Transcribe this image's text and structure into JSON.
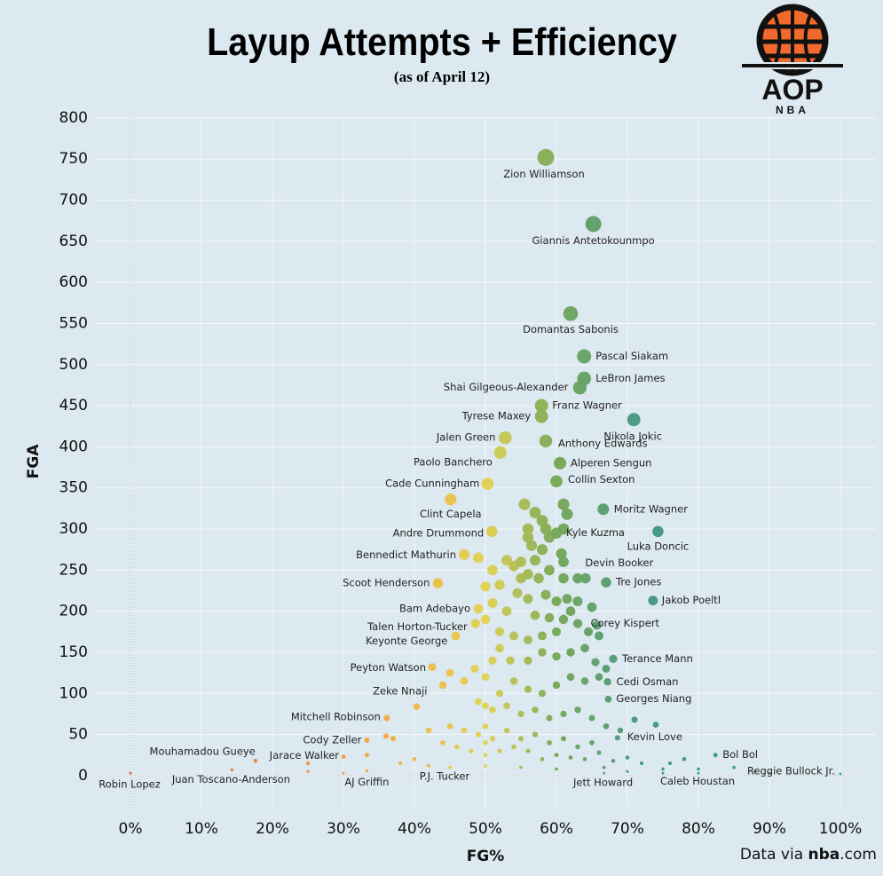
{
  "chart_data": {
    "type": "scatter",
    "title": "Layup Attempts + Efficiency",
    "subtitle": "(as of April 12)",
    "x_label": "FG%",
    "y_label": "FGA",
    "source_prefix": "Data via ",
    "source_bold": "nba",
    "source_suffix": ".com",
    "logo_text": "AOP",
    "logo_subtext": "NBA",
    "xlim": [
      -5,
      105
    ],
    "ylim": [
      -39,
      801
    ],
    "xticks": [
      {
        "value": 0,
        "label": "0%"
      },
      {
        "value": 10,
        "label": "10%"
      },
      {
        "value": 20,
        "label": "20%"
      },
      {
        "value": 30,
        "label": "30%"
      },
      {
        "value": 40,
        "label": "40%"
      },
      {
        "value": 50,
        "label": "50%"
      },
      {
        "value": 60,
        "label": "60%"
      },
      {
        "value": 70,
        "label": "70%"
      },
      {
        "value": 80,
        "label": "80%"
      },
      {
        "value": 90,
        "label": "90%"
      },
      {
        "value": 100,
        "label": "100%"
      }
    ],
    "yticks": [
      0,
      50,
      100,
      150,
      200,
      250,
      300,
      350,
      400,
      450,
      500,
      550,
      600,
      650,
      700,
      750,
      800
    ],
    "grid": true,
    "color_scale": [
      {
        "value": 0,
        "color": "#e0583a"
      },
      {
        "value": 36,
        "color": "#f2aa3c"
      },
      {
        "value": 50,
        "color": "#e2d24f"
      },
      {
        "value": 60,
        "color": "#74a652"
      },
      {
        "value": 72,
        "color": "#3f9585"
      },
      {
        "value": 100,
        "color": "#2e9a8b"
      }
    ],
    "labels": [
      "Zion Williamson",
      "Giannis Antetokounmpo",
      "Domantas Sabonis",
      "Pascal Siakam",
      "LeBron James",
      "Shai Gilgeous-Alexander",
      "Franz Wagner",
      "Tyrese Maxey",
      "Nikola Jokic",
      "Jalen Green",
      "Anthony Edwards",
      "Paolo Banchero",
      "Alperen Sengun",
      "Cade Cunningham",
      "Collin Sexton",
      "Clint Capela",
      "Moritz Wagner",
      "Andre Drummond",
      "Kyle Kuzma",
      "Luka Doncic",
      "Bennedict Mathurin",
      "Devin Booker",
      "Tre Jones",
      "Scoot Henderson",
      "Jakob Poeltl",
      "Bam Adebayo",
      "Talen Horton-Tucker",
      "Corey Kispert",
      "Keyonte George",
      "Terance Mann",
      "Peyton Watson",
      "Cedi Osman",
      "Zeke Nnaji",
      "Georges Niang",
      "Mitchell Robinson",
      "Kevin Love",
      "Cody Zeller",
      "Mouhamadou Gueye",
      "Bol Bol",
      "Jarace Walker",
      "Robin Lopez",
      "Juan Toscano-Anderson",
      "AJ Griffin",
      "P.J. Tucker",
      "Jett Howard",
      "Caleb Houstan",
      "Reggie Bullock Jr.",
      null,
      null,
      null,
      null,
      null,
      null,
      null,
      null,
      null,
      null,
      null,
      null,
      null,
      null,
      null,
      null,
      null,
      null,
      null,
      null,
      null,
      null,
      null,
      null,
      null,
      null,
      null,
      null,
      null,
      null,
      null,
      null,
      null,
      null,
      null,
      null,
      null,
      null,
      null,
      null,
      null,
      null,
      null,
      null,
      null,
      null,
      null,
      null,
      null,
      null,
      null,
      null,
      null,
      null,
      null,
      null,
      null,
      null,
      null,
      null,
      null,
      null,
      null,
      null,
      null,
      null,
      null,
      null,
      null,
      null,
      null,
      null,
      null,
      null,
      null,
      null,
      null,
      null,
      null,
      null,
      null,
      null,
      null,
      null,
      null,
      null,
      null,
      null,
      null,
      null,
      null,
      null,
      null,
      null,
      null,
      null,
      null,
      null,
      null,
      null,
      null,
      null,
      null,
      null,
      null,
      null,
      null,
      null,
      null,
      null,
      null,
      null,
      null,
      null,
      null,
      null,
      null,
      null,
      null,
      null,
      null,
      null,
      null,
      null,
      null,
      null,
      null,
      null,
      null,
      null,
      null,
      null,
      null,
      null,
      null
    ],
    "x": [
      58.5,
      65.2,
      62,
      63.9,
      63.9,
      63.3,
      57.9,
      57.9,
      70.9,
      52.8,
      58.5,
      52.1,
      60.5,
      50.3,
      60,
      45.1,
      66.6,
      50.9,
      60,
      74.3,
      47,
      64.1,
      67,
      43.3,
      73.6,
      49,
      48.6,
      65.7,
      45.8,
      68,
      42.5,
      67.2,
      40.3,
      67.3,
      36.1,
      68.6,
      33.3,
      17.6,
      82.4,
      30,
      0,
      14.3,
      33.3,
      50,
      66.7,
      75,
      100,
      55.5,
      57,
      58,
      61,
      61.5,
      56,
      56,
      58.5,
      59,
      61,
      56.5,
      58,
      60.7,
      57,
      55,
      61,
      59,
      56,
      57.5,
      61,
      63,
      55,
      53,
      54,
      51,
      49,
      50,
      52,
      54.5,
      56,
      58.5,
      60,
      61.5,
      63,
      65,
      62,
      57,
      59,
      61,
      63,
      64.5,
      66,
      60,
      58,
      56,
      54,
      52,
      50,
      51,
      53,
      52,
      51,
      53.5,
      56,
      58,
      60,
      62,
      64,
      65.5,
      67,
      66,
      64,
      62,
      60,
      58,
      56,
      54,
      52,
      50,
      48.5,
      47,
      45,
      44,
      49,
      51,
      53,
      55,
      57,
      59,
      61,
      63,
      65,
      67,
      69,
      71,
      74,
      45,
      47,
      49,
      51,
      53,
      55,
      57,
      59,
      61,
      63,
      65,
      36,
      37,
      42,
      44,
      46,
      48,
      50,
      52,
      54,
      56,
      58,
      60,
      62,
      64,
      66,
      68,
      70,
      72,
      76,
      78,
      80,
      85,
      88,
      40,
      38,
      42,
      45,
      33.3,
      25,
      25,
      30,
      55,
      60,
      70,
      75,
      90,
      80,
      66.7,
      50,
      50,
      50
    ],
    "values": [
      752,
      671,
      562,
      510,
      483,
      472,
      450,
      437,
      433,
      411,
      407,
      393,
      380,
      355,
      358,
      336,
      324,
      297,
      295,
      297,
      269,
      240,
      235,
      234,
      213,
      203,
      185,
      183,
      170,
      142,
      132,
      114,
      84,
      93,
      70,
      46,
      43,
      18,
      25,
      23,
      3,
      7,
      6,
      12,
      3,
      8,
      2,
      330,
      320,
      310,
      330,
      318,
      300,
      290,
      300,
      290,
      300,
      280,
      275,
      270,
      262,
      260,
      260,
      250,
      245,
      240,
      240,
      240,
      240,
      262,
      255,
      250,
      265,
      230,
      232,
      222,
      215,
      220,
      212,
      215,
      212,
      205,
      200,
      195,
      192,
      190,
      185,
      175,
      170,
      175,
      170,
      165,
      170,
      175,
      190,
      210,
      200,
      155,
      140,
      140,
      140,
      150,
      145,
      150,
      155,
      138,
      130,
      120,
      115,
      120,
      110,
      100,
      105,
      115,
      100,
      120,
      130,
      115,
      125,
      110,
      90,
      80,
      85,
      75,
      80,
      70,
      75,
      80,
      70,
      60,
      55,
      68,
      62,
      60,
      55,
      50,
      45,
      55,
      45,
      50,
      40,
      45,
      35,
      40,
      48,
      45,
      55,
      40,
      35,
      30,
      25,
      30,
      35,
      30,
      20,
      25,
      22,
      20,
      28,
      18,
      22,
      15,
      15,
      20,
      8,
      10,
      5,
      20,
      15,
      12,
      10,
      25,
      15,
      5,
      3,
      10,
      8,
      5,
      3,
      3,
      3,
      10,
      40,
      60,
      85
    ]
  }
}
